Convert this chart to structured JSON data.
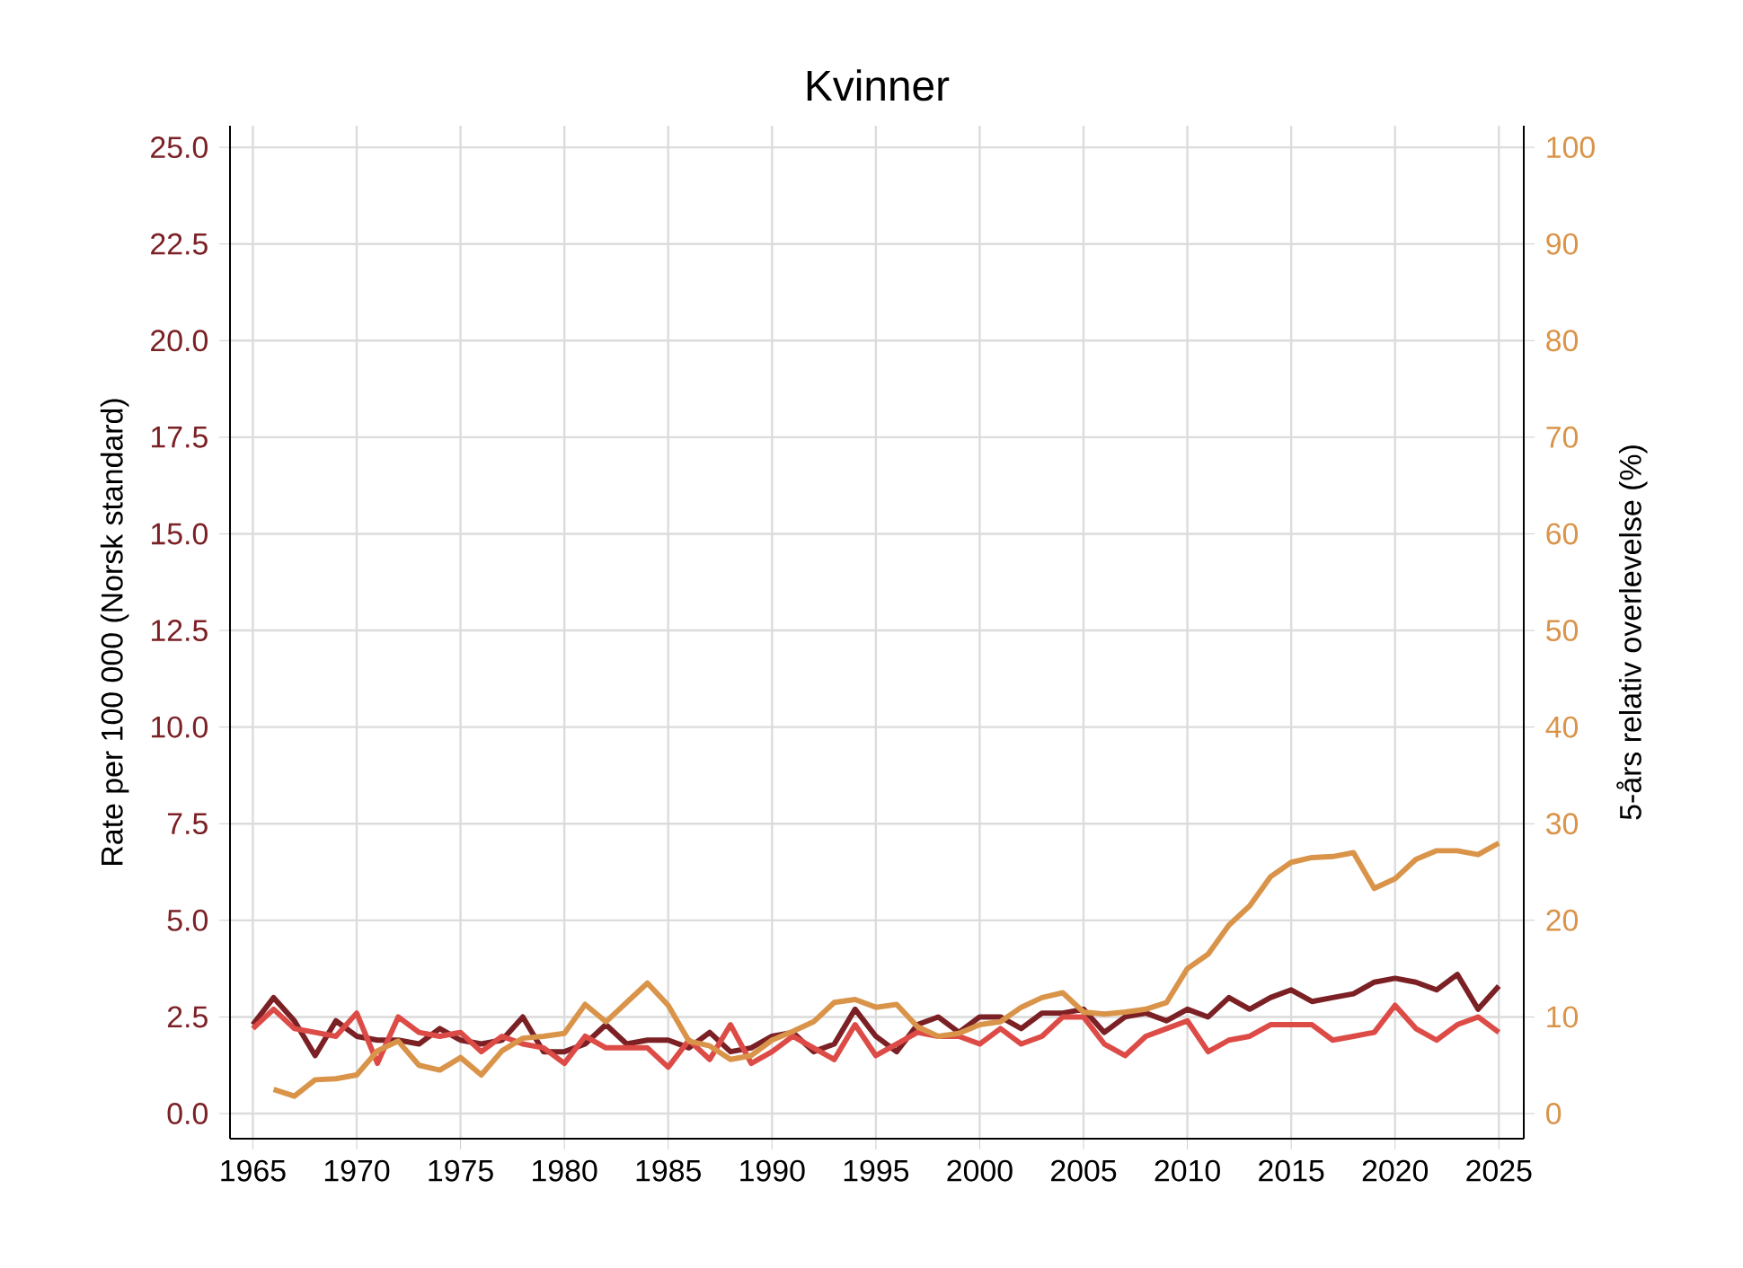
{
  "chart_data": {
    "type": "line",
    "title": "Kvinner",
    "ylabel": "Rate per 100 000 (Norsk standard)",
    "y2label": "5-års relativ overlevelse (%)",
    "x": [
      1965,
      1966,
      1967,
      1968,
      1969,
      1970,
      1971,
      1972,
      1973,
      1974,
      1975,
      1976,
      1977,
      1978,
      1979,
      1980,
      1981,
      1982,
      1983,
      1984,
      1985,
      1986,
      1987,
      1988,
      1989,
      1990,
      1991,
      1992,
      1993,
      1994,
      1995,
      1996,
      1997,
      1998,
      1999,
      2000,
      2001,
      2002,
      2003,
      2004,
      2005,
      2006,
      2007,
      2008,
      2009,
      2010,
      2011,
      2012,
      2013,
      2014,
      2015,
      2016,
      2017,
      2018,
      2019,
      2020,
      2021,
      2022,
      2023,
      2024,
      2025
    ],
    "series": [
      {
        "color": "#7b2125",
        "values": [
          2.3,
          3.0,
          2.4,
          1.5,
          2.4,
          2.0,
          1.9,
          1.9,
          1.8,
          2.2,
          1.9,
          1.8,
          1.9,
          2.5,
          1.6,
          1.6,
          1.8,
          2.3,
          1.8,
          1.9,
          1.9,
          1.7,
          2.1,
          1.6,
          1.7,
          2.0,
          2.1,
          1.6,
          1.8,
          2.7,
          2.0,
          1.6,
          2.3,
          2.5,
          2.1,
          2.5,
          2.5,
          2.2,
          2.6,
          2.6,
          2.7,
          2.1,
          2.5,
          2.6,
          2.4,
          2.7,
          2.5,
          3.0,
          2.7,
          3.0,
          3.2,
          2.9,
          3.0,
          3.1,
          3.4,
          3.5,
          3.4,
          3.2,
          3.6,
          2.7,
          3.3
        ]
      },
      {
        "color": "#dd4b47",
        "values": [
          2.2,
          2.7,
          2.2,
          2.1,
          2.0,
          2.6,
          1.3,
          2.5,
          2.1,
          2.0,
          2.1,
          1.6,
          2.0,
          1.8,
          1.7,
          1.3,
          2.0,
          1.7,
          1.7,
          1.7,
          1.2,
          1.9,
          1.4,
          2.3,
          1.3,
          1.6,
          2.0,
          1.7,
          1.4,
          2.3,
          1.5,
          1.8,
          2.1,
          2.0,
          2.0,
          1.8,
          2.2,
          1.8,
          2.0,
          2.5,
          2.5,
          1.8,
          1.5,
          2.0,
          2.2,
          2.4,
          1.6,
          1.9,
          2.0,
          2.3,
          2.3,
          2.3,
          1.9,
          2.0,
          2.1,
          2.8,
          2.2,
          1.9,
          2.3,
          2.5,
          2.1
        ]
      },
      {
        "color": "#d9944a",
        "axis": "y2",
        "values": [
          null,
          2.5,
          1.8,
          3.5,
          3.6,
          4.0,
          6.5,
          7.5,
          5.0,
          4.5,
          5.8,
          4.0,
          6.5,
          7.8,
          8.0,
          8.3,
          11.3,
          9.5,
          11.5,
          13.5,
          11.2,
          7.5,
          7.0,
          5.6,
          6.0,
          7.6,
          8.5,
          9.5,
          11.5,
          11.8,
          11.0,
          11.3,
          9.0,
          8.0,
          8.3,
          9.2,
          9.5,
          11.0,
          12.0,
          12.5,
          10.5,
          10.3,
          10.5,
          10.8,
          11.5,
          15.0,
          16.5,
          19.5,
          21.5,
          24.5,
          26.0,
          26.5,
          26.6,
          27.0,
          23.3,
          24.3,
          26.3,
          27.2,
          27.2,
          26.8,
          28.0
        ]
      }
    ],
    "xlim": [
      1963.9,
      2026.2
    ],
    "xticks": [
      1965,
      1970,
      1975,
      1980,
      1985,
      1990,
      1995,
      2000,
      2005,
      2010,
      2015,
      2020,
      2025
    ],
    "ylim": [
      -0.65,
      25.56
    ],
    "yticks": [
      {
        "value": 0,
        "label": "0.0"
      },
      2.5,
      {
        "value": 5,
        "label": "5.0"
      },
      7.5,
      {
        "value": 10,
        "label": "10.0"
      },
      12.5,
      {
        "value": 15,
        "label": "15.0"
      },
      17.5,
      {
        "value": 20,
        "label": "20.0"
      },
      22.5,
      {
        "value": 25,
        "label": "25.0"
      }
    ],
    "y2lim": [
      -2.6,
      102.24
    ],
    "y2ticks": [
      0,
      10,
      20,
      30,
      40,
      50,
      60,
      70,
      80,
      90,
      100
    ],
    "grid": true,
    "marker": "none",
    "line_style": "solid"
  }
}
